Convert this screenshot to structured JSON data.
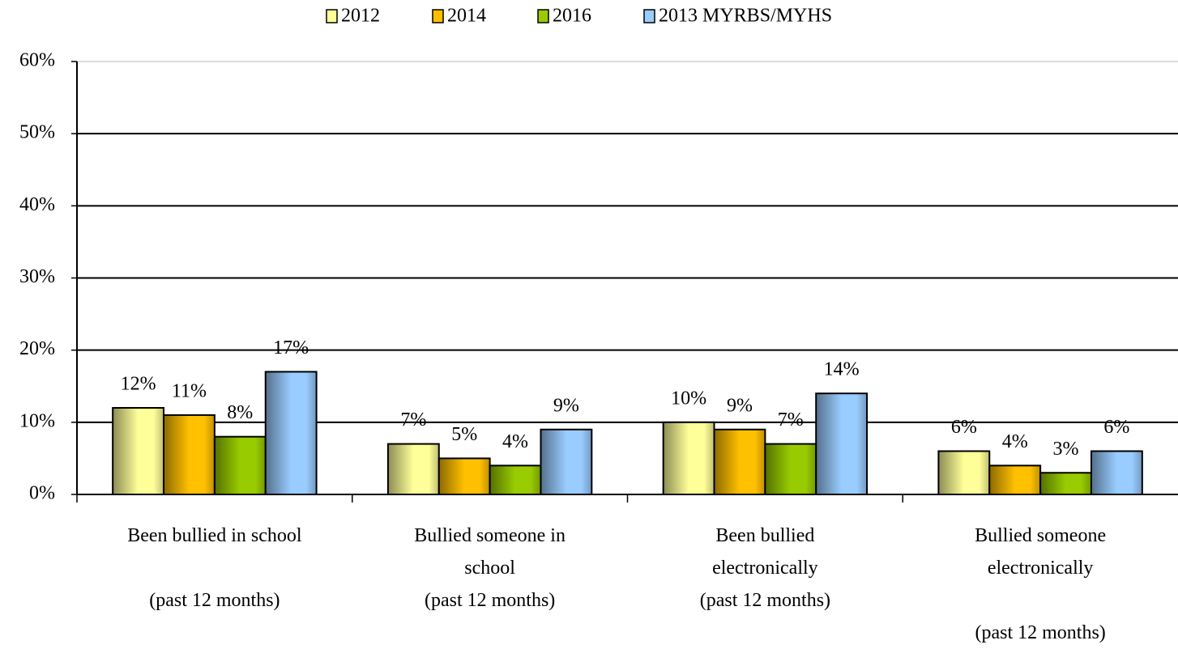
{
  "chart_data": {
    "type": "bar",
    "categories": [
      "Been bullied in school\n\n(past 12 months)",
      "Bullied someone in\nschool\n(past 12 months)",
      "Been bullied\nelectronically\n(past 12 months)",
      "Bullied someone\nelectronically\n\n(past 12 months)"
    ],
    "series": [
      {
        "name": "2012",
        "color": "#ffff99",
        "values": [
          12,
          7,
          10,
          6
        ],
        "value_labels": [
          "12%",
          "7%",
          "10%",
          "6%"
        ]
      },
      {
        "name": "2014",
        "color": "#ffc000",
        "values": [
          11,
          5,
          9,
          4
        ],
        "value_labels": [
          "11%",
          "5%",
          "9%",
          "4%"
        ]
      },
      {
        "name": "2016",
        "color": "#99cc00",
        "values": [
          8,
          4,
          7,
          3
        ],
        "value_labels": [
          "8%",
          "4%",
          "7%",
          "3%"
        ]
      },
      {
        "name": "2013 MYRBS/MYHS",
        "color": "#99ccff",
        "values": [
          17,
          9,
          14,
          6
        ],
        "value_labels": [
          "17%",
          "9%",
          "14%",
          "6%"
        ]
      }
    ],
    "ylim": [
      0,
      60
    ],
    "yticks": [
      {
        "value": 0,
        "label": "0%"
      },
      {
        "value": 10,
        "label": "10%"
      },
      {
        "value": 20,
        "label": "20%"
      },
      {
        "value": 30,
        "label": "30%"
      },
      {
        "value": 40,
        "label": "40%"
      },
      {
        "value": 50,
        "label": "50%"
      },
      {
        "value": 60,
        "label": "60%"
      }
    ],
    "grid": true,
    "legend": "top"
  }
}
